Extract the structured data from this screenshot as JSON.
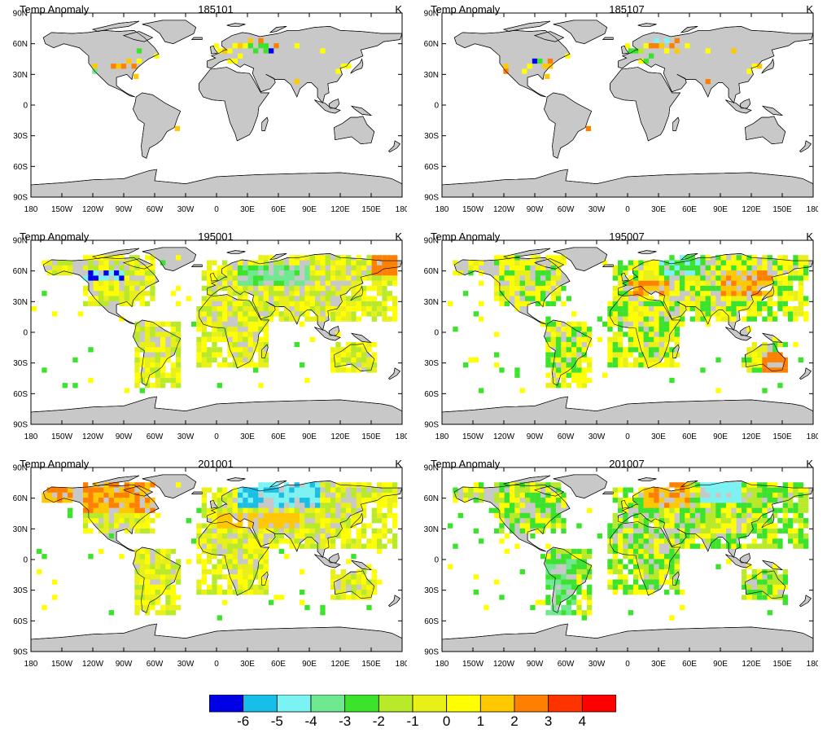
{
  "panels": [
    {
      "id": "p185101",
      "left_title": "Temp Anomaly",
      "center_title": "185101",
      "units": "K",
      "cells": [
        [
          -100,
          38,
          3
        ],
        [
          -95,
          38,
          2
        ],
        [
          -90,
          38,
          3
        ],
        [
          -85,
          43,
          2
        ],
        [
          -80,
          38,
          3
        ],
        [
          -75,
          43,
          1
        ],
        [
          -118,
          33,
          -3
        ],
        [
          -118,
          38,
          2
        ],
        [
          -78,
          28,
          2
        ],
        [
          0,
          58,
          1
        ],
        [
          3,
          53,
          1
        ],
        [
          8,
          53,
          2
        ],
        [
          13,
          53,
          1
        ],
        [
          18,
          58,
          1
        ],
        [
          23,
          58,
          2
        ],
        [
          28,
          58,
          1
        ],
        [
          33,
          58,
          -2
        ],
        [
          38,
          53,
          -2
        ],
        [
          43,
          58,
          -2
        ],
        [
          48,
          53,
          -2
        ],
        [
          48,
          58,
          -2
        ],
        [
          53,
          53,
          -6
        ],
        [
          43,
          63,
          3
        ],
        [
          33,
          63,
          2
        ],
        [
          13,
          43,
          1
        ],
        [
          18,
          43,
          1
        ],
        [
          23,
          48,
          1
        ],
        [
          58,
          58,
          3
        ],
        [
          78,
          58,
          1
        ],
        [
          103,
          53,
          1
        ],
        [
          118,
          33,
          1
        ],
        [
          123,
          38,
          1
        ],
        [
          128,
          38,
          1
        ],
        [
          78,
          23,
          2
        ],
        [
          -38,
          -23,
          2
        ],
        [
          -58,
          48,
          1
        ],
        [
          -75,
          53,
          -2
        ]
      ]
    },
    {
      "id": "p185107",
      "left_title": "Temp Anomaly",
      "center_title": "185107",
      "units": "K",
      "cells": [
        [
          -90,
          43,
          -6
        ],
        [
          -85,
          43,
          -2
        ],
        [
          -80,
          38,
          2
        ],
        [
          -75,
          43,
          3
        ],
        [
          -95,
          38,
          1
        ],
        [
          -100,
          33,
          1
        ],
        [
          -118,
          33,
          3
        ],
        [
          -118,
          38,
          2
        ],
        [
          -75,
          38,
          2
        ],
        [
          -78,
          28,
          2
        ],
        [
          0,
          58,
          1
        ],
        [
          3,
          53,
          -2
        ],
        [
          8,
          53,
          -2
        ],
        [
          13,
          53,
          -1
        ],
        [
          18,
          58,
          1
        ],
        [
          23,
          58,
          3
        ],
        [
          28,
          58,
          3
        ],
        [
          33,
          58,
          2
        ],
        [
          38,
          53,
          1
        ],
        [
          43,
          58,
          3
        ],
        [
          48,
          53,
          2
        ],
        [
          48,
          63,
          3
        ],
        [
          13,
          43,
          1
        ],
        [
          18,
          43,
          -2
        ],
        [
          23,
          48,
          -2
        ],
        [
          58,
          58,
          1
        ],
        [
          78,
          53,
          1
        ],
        [
          103,
          53,
          2
        ],
        [
          118,
          33,
          1
        ],
        [
          123,
          38,
          1
        ],
        [
          128,
          38,
          2
        ],
        [
          78,
          23,
          3
        ],
        [
          -38,
          -23,
          3
        ],
        [
          28,
          63,
          -4
        ],
        [
          38,
          63,
          -4
        ],
        [
          -58,
          48,
          1
        ]
      ]
    },
    {
      "id": "p195001",
      "left_title": "Temp Anomaly",
      "center_title": "195001",
      "units": "K",
      "cells": []
    },
    {
      "id": "p195007",
      "left_title": "Temp Anomaly",
      "center_title": "195007",
      "units": "K",
      "cells": []
    },
    {
      "id": "p201001",
      "left_title": "Temp Anomaly",
      "center_title": "201001",
      "units": "K",
      "cells": []
    },
    {
      "id": "p201007",
      "left_title": "Temp Anomaly",
      "center_title": "201007",
      "units": "K",
      "cells": []
    }
  ],
  "axes": {
    "lat_labels": [
      "90N",
      "60N",
      "30N",
      "0",
      "30S",
      "60S",
      "90S"
    ],
    "lon_labels": [
      "180",
      "150W",
      "120W",
      "90W",
      "60W",
      "30W",
      "0",
      "30E",
      "60E",
      "90E",
      "120E",
      "150E",
      "180"
    ]
  },
  "colorbar": {
    "colors": [
      "#0000e6",
      "#17bfe8",
      "#7cf3f3",
      "#6fe98f",
      "#3be32c",
      "#b8ea2a",
      "#e8f018",
      "#ffff00",
      "#ffc800",
      "#ff8000",
      "#ff3300",
      "#ff0000"
    ],
    "labels": [
      "-6",
      "-5",
      "-4",
      "-3",
      "-2",
      "-1",
      "0",
      "1",
      "2",
      "3",
      "4"
    ]
  },
  "land_color": "#c8c8c8"
}
